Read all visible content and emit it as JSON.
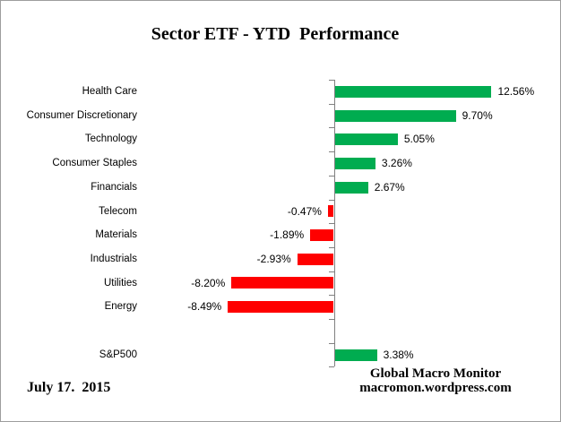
{
  "header": {
    "title": "Sector ETF - YTD  Performance"
  },
  "chart_data": {
    "type": "bar",
    "orientation": "horizontal",
    "title": "Sector ETF - YTD  Performance",
    "categories": [
      "Health Care",
      "Consumer Discretionary",
      "Technology",
      "Consumer Staples",
      "Financials",
      "Telecom",
      "Materials",
      "Industrials",
      "Utilities",
      "Energy",
      "S&P500"
    ],
    "values": [
      12.56,
      9.7,
      5.05,
      3.26,
      2.67,
      -0.47,
      -1.89,
      -2.93,
      -8.2,
      -8.49,
      3.38
    ],
    "value_labels": [
      "12.56%",
      "9.70%",
      "5.05%",
      "3.26%",
      "2.67%",
      "-0.47%",
      "-1.89%",
      "-2.93%",
      "-8.20%",
      "-8.49%",
      "3.38%"
    ],
    "gap_before_category": "S&P500",
    "positive_color": "#00AC50",
    "negative_color": "#FF0000",
    "axis_color": "#808080",
    "gridlines": false,
    "legend": false,
    "value_axis_labels_visible": false
  },
  "footer": {
    "date": "July 17.  2015",
    "credit_line1": "Global Macro Monitor",
    "credit_line2": "macromon.wordpress.com"
  }
}
